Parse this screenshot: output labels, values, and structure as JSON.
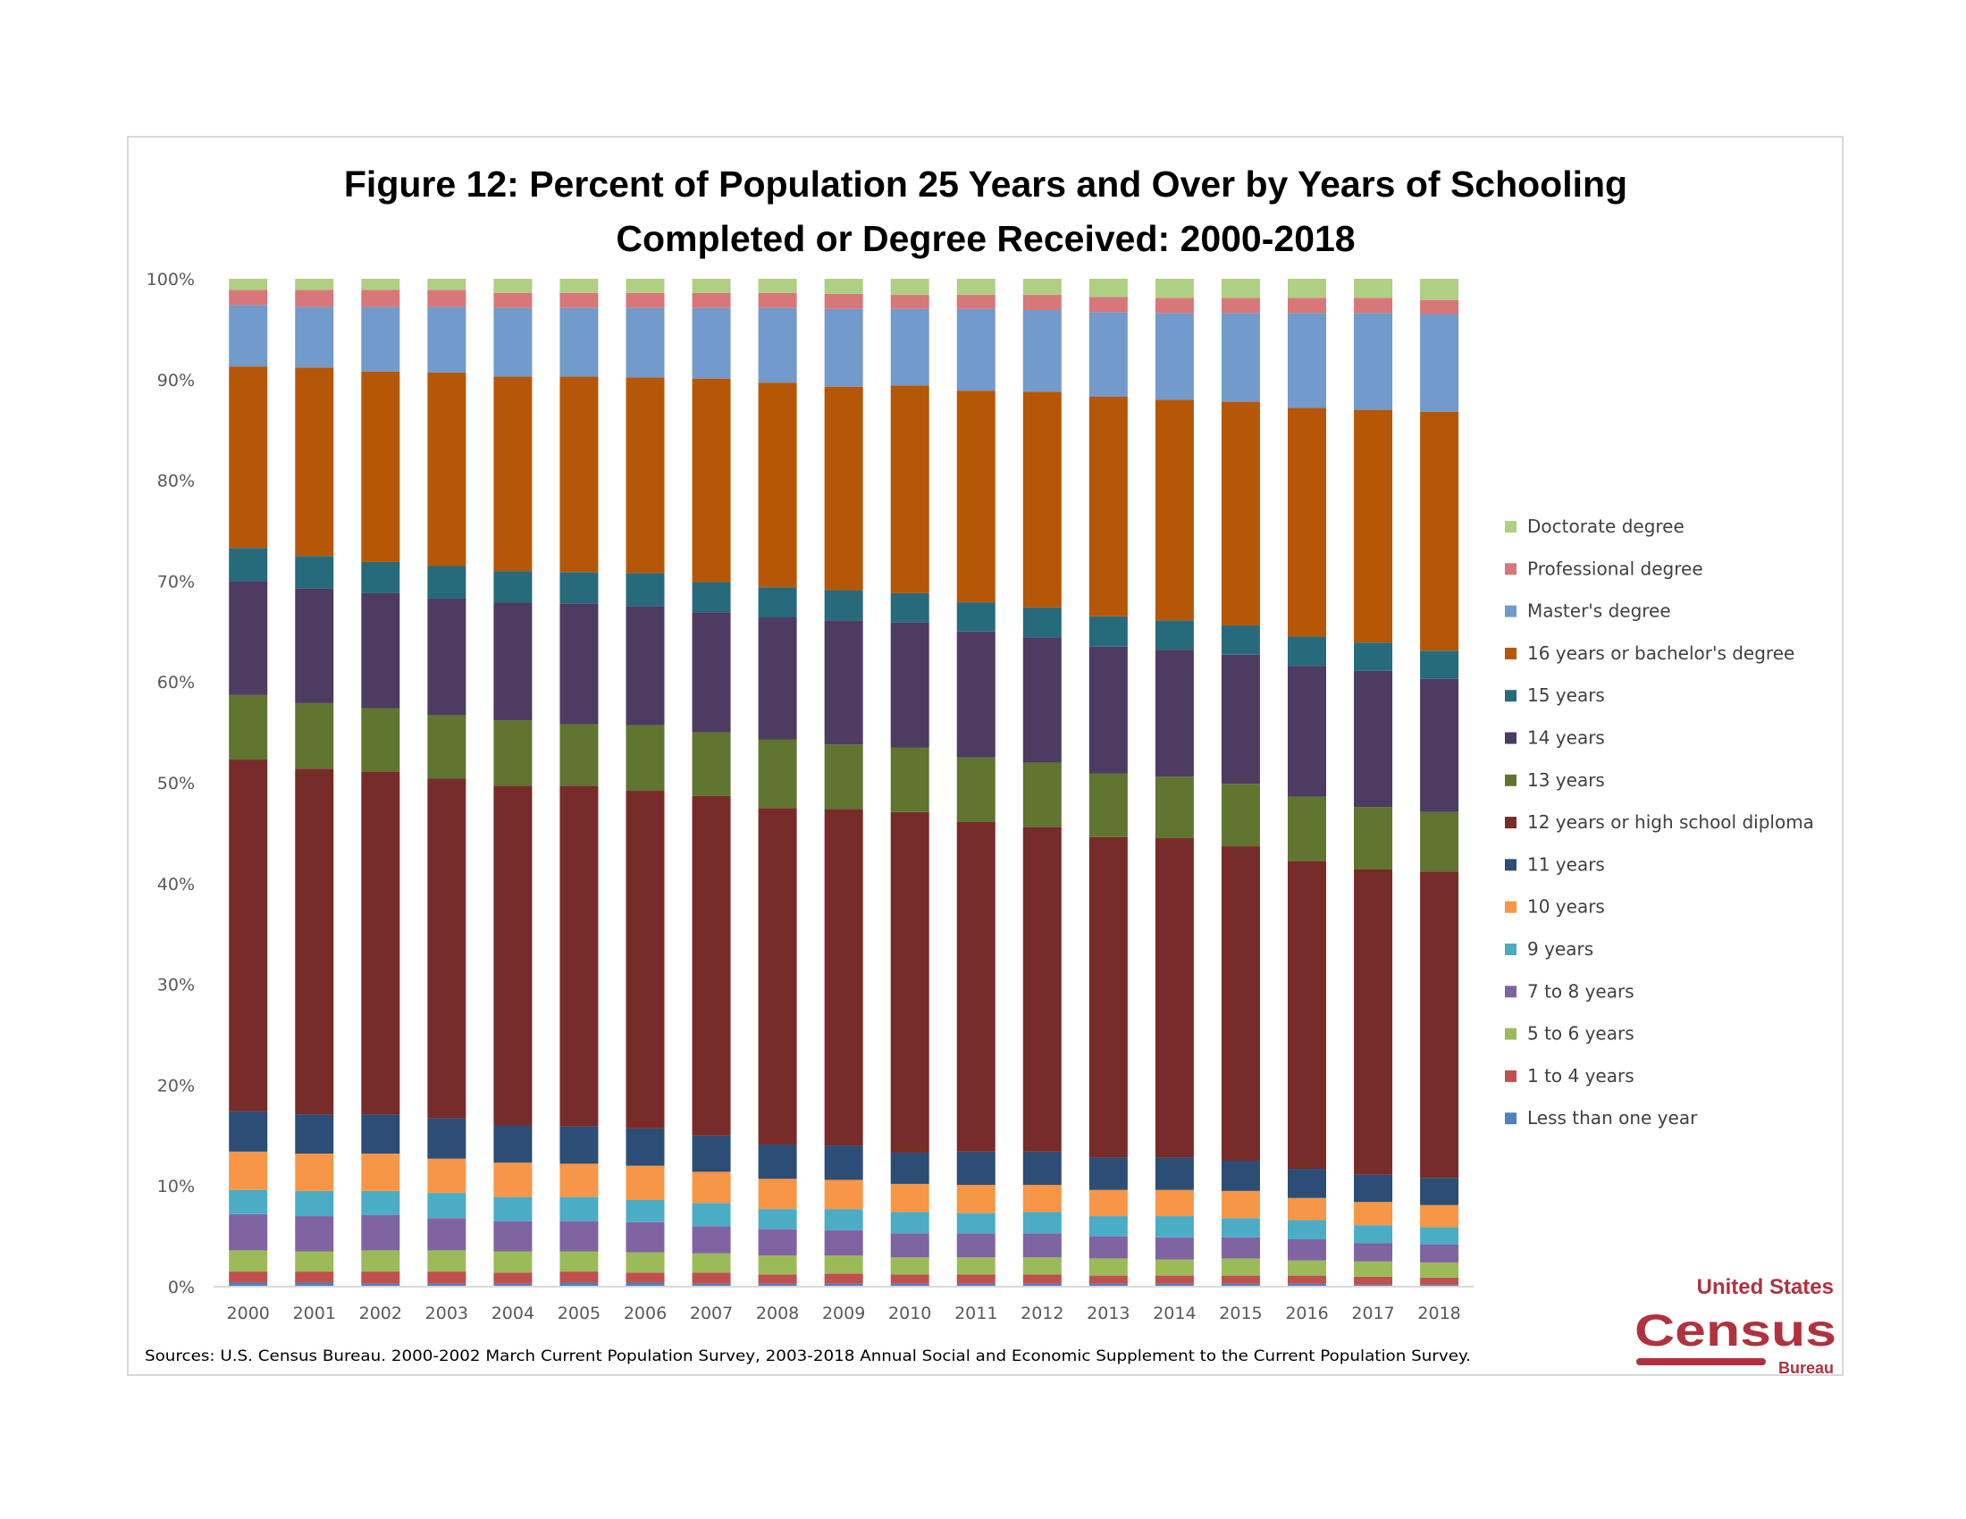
{
  "chart_data": {
    "type": "bar",
    "stacked": true,
    "title_line1": "Figure 12: Percent of Population 25 Years and Over by Years of Schooling",
    "title_line2": "Completed or Degree Received: 2000-2018",
    "xlabel": "",
    "ylabel": "",
    "ylim": [
      0,
      100
    ],
    "y_ticks": [
      "0%",
      "10%",
      "20%",
      "30%",
      "40%",
      "50%",
      "60%",
      "70%",
      "80%",
      "90%",
      "100%"
    ],
    "grid": false,
    "legend_placement": "right",
    "categories": [
      "2000",
      "2001",
      "2002",
      "2003",
      "2004",
      "2005",
      "2006",
      "2007",
      "2008",
      "2009",
      "2010",
      "2011",
      "2012",
      "2013",
      "2014",
      "2015",
      "2016",
      "2017",
      "2018"
    ],
    "series": [
      {
        "name": "Less than one year",
        "color": "#4f81bd",
        "values": [
          0.4,
          0.4,
          0.3,
          0.3,
          0.3,
          0.4,
          0.4,
          0.3,
          0.3,
          0.3,
          0.3,
          0.3,
          0.3,
          0.3,
          0.3,
          0.3,
          0.3,
          0.2,
          0.2
        ]
      },
      {
        "name": "1 to 4 years",
        "color": "#c0504d",
        "values": [
          1.1,
          1.1,
          1.2,
          1.2,
          1.1,
          1.1,
          1.0,
          1.1,
          0.9,
          1.0,
          0.9,
          0.9,
          0.9,
          0.8,
          0.8,
          0.8,
          0.8,
          0.8,
          0.7
        ]
      },
      {
        "name": "5 to 6 years",
        "color": "#9bbb59",
        "values": [
          2.1,
          2.0,
          2.1,
          2.1,
          2.1,
          2.0,
          2.0,
          1.9,
          1.9,
          1.8,
          1.7,
          1.7,
          1.7,
          1.7,
          1.6,
          1.7,
          1.5,
          1.5,
          1.5
        ]
      },
      {
        "name": "7 to 8 years",
        "color": "#8064a2",
        "values": [
          3.6,
          3.5,
          3.5,
          3.2,
          3.0,
          3.0,
          3.0,
          2.7,
          2.6,
          2.5,
          2.4,
          2.4,
          2.4,
          2.2,
          2.2,
          2.1,
          2.1,
          1.8,
          1.8
        ]
      },
      {
        "name": "9 years",
        "color": "#4bacc6",
        "values": [
          2.4,
          2.5,
          2.4,
          2.5,
          2.4,
          2.4,
          2.2,
          2.3,
          2.0,
          2.1,
          2.1,
          2.0,
          2.1,
          2.0,
          2.1,
          1.9,
          1.9,
          1.8,
          1.7
        ]
      },
      {
        "name": "10 years",
        "color": "#f79646",
        "values": [
          3.8,
          3.7,
          3.7,
          3.4,
          3.4,
          3.3,
          3.4,
          3.1,
          3.0,
          2.9,
          2.8,
          2.8,
          2.7,
          2.6,
          2.6,
          2.7,
          2.2,
          2.3,
          2.2
        ]
      },
      {
        "name": "11 years",
        "color": "#2c4d75",
        "values": [
          4.0,
          3.9,
          3.9,
          4.0,
          3.7,
          3.7,
          3.7,
          3.6,
          3.4,
          3.4,
          3.1,
          3.3,
          3.3,
          3.2,
          3.2,
          3.0,
          2.9,
          2.7,
          2.7
        ]
      },
      {
        "name": "12 years or high school diploma",
        "color": "#772c2a",
        "values": [
          34.9,
          34.3,
          34.0,
          33.7,
          33.7,
          33.8,
          33.5,
          33.7,
          33.4,
          33.4,
          33.8,
          32.7,
          32.2,
          31.8,
          31.7,
          31.2,
          30.5,
          30.3,
          30.4
        ]
      },
      {
        "name": "13 years",
        "color": "#5f7530",
        "values": [
          6.4,
          6.5,
          6.3,
          6.3,
          6.5,
          6.1,
          6.5,
          6.3,
          6.8,
          6.4,
          6.4,
          6.4,
          6.4,
          6.3,
          6.1,
          6.2,
          6.4,
          6.2,
          5.9
        ]
      },
      {
        "name": "14 years",
        "color": "#4d3b62",
        "values": [
          11.3,
          11.4,
          11.4,
          11.6,
          11.7,
          12.0,
          11.8,
          11.9,
          12.1,
          12.3,
          12.4,
          12.5,
          12.4,
          12.6,
          12.6,
          12.8,
          13.0,
          13.5,
          13.2
        ]
      },
      {
        "name": "15 years",
        "color": "#276a7c",
        "values": [
          3.3,
          3.2,
          3.1,
          3.2,
          3.1,
          3.1,
          3.3,
          3.0,
          3.0,
          3.0,
          2.9,
          2.9,
          3.0,
          3.0,
          2.9,
          2.9,
          2.9,
          2.8,
          2.8
        ]
      },
      {
        "name": "16 years or bachelor's degree",
        "color": "#b65708",
        "values": [
          18.0,
          18.7,
          18.9,
          19.2,
          19.3,
          19.4,
          19.4,
          20.2,
          20.3,
          20.2,
          20.6,
          21.0,
          21.4,
          21.8,
          21.9,
          22.2,
          22.7,
          23.1,
          23.7
        ]
      },
      {
        "name": "Master's degree",
        "color": "#729aca",
        "values": [
          6.1,
          6.0,
          6.4,
          6.5,
          6.8,
          6.8,
          6.9,
          7.0,
          7.4,
          7.7,
          7.6,
          8.1,
          8.1,
          8.4,
          8.6,
          8.8,
          9.4,
          9.6,
          9.7
        ]
      },
      {
        "name": "Professional degree",
        "color": "#d7777a",
        "values": [
          1.5,
          1.7,
          1.7,
          1.7,
          1.5,
          1.5,
          1.5,
          1.5,
          1.5,
          1.5,
          1.4,
          1.4,
          1.5,
          1.5,
          1.5,
          1.5,
          1.5,
          1.5,
          1.4
        ]
      },
      {
        "name": "Doctorate degree",
        "color": "#afcf83",
        "values": [
          1.1,
          1.1,
          1.1,
          1.1,
          1.4,
          1.4,
          1.4,
          1.4,
          1.4,
          1.5,
          1.6,
          1.6,
          1.6,
          1.8,
          1.9,
          1.9,
          1.9,
          1.9,
          2.1
        ]
      }
    ],
    "source_note": "Sources:  U.S. Census Bureau. 2000-2002 March Current Population Survey, 2003-2018 Annual Social and Economic Supplement to the Current Population Survey."
  },
  "logo": {
    "line1": "United States",
    "line2": "Census",
    "line3": "Bureau",
    "color": "#b0323e"
  }
}
